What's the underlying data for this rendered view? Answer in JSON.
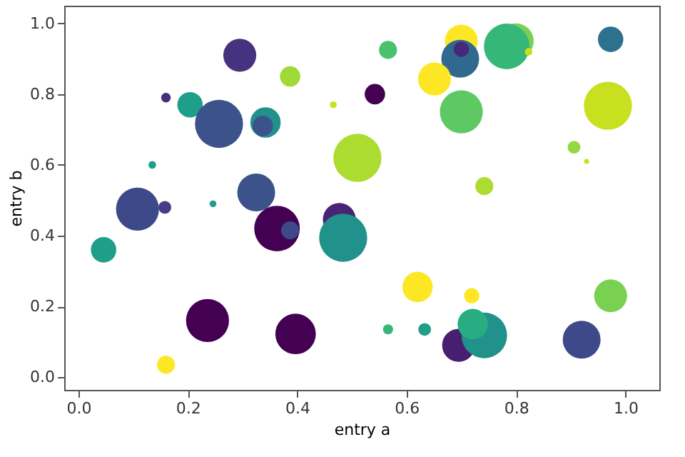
{
  "chart_data": {
    "type": "bubble",
    "xlabel": "entry a",
    "ylabel": "entry b",
    "x": [
      0.295,
      0.387,
      0.16,
      0.204,
      0.257,
      0.342,
      0.337,
      0.135,
      0.325,
      0.108,
      0.158,
      0.246,
      0.046,
      0.363,
      0.387,
      0.477,
      0.484,
      0.236,
      0.397,
      0.16,
      0.51,
      0.466,
      0.542,
      0.566,
      0.7,
      0.698,
      0.7,
      0.8,
      0.783,
      0.823,
      0.651,
      0.7,
      0.973,
      0.968,
      0.906,
      0.929,
      0.742,
      0.62,
      0.719,
      0.566,
      0.633,
      0.695,
      0.742,
      0.721,
      0.92,
      0.973
    ],
    "values": [
      0.91,
      0.85,
      0.79,
      0.77,
      0.716,
      0.72,
      0.71,
      0.6,
      0.522,
      0.475,
      0.48,
      0.49,
      0.36,
      0.42,
      0.415,
      0.446,
      0.394,
      0.16,
      0.122,
      0.035,
      0.62,
      0.77,
      0.8,
      0.925,
      0.95,
      0.9,
      0.927,
      0.95,
      0.935,
      0.92,
      0.843,
      0.75,
      0.955,
      0.767,
      0.65,
      0.61,
      0.54,
      0.255,
      0.23,
      0.135,
      0.135,
      0.09,
      0.118,
      0.15,
      0.106,
      0.23
    ],
    "sizes": [
      0.47,
      0.18,
      0.04,
      0.28,
      1,
      0.4,
      0.18,
      0.025,
      0.62,
      0.8,
      0.07,
      0.02,
      0.28,
      0.9,
      0.14,
      0.47,
      1,
      0.8,
      0.71,
      0.14,
      1,
      0.02,
      0.18,
      0.14,
      0.47,
      0.62,
      0.1,
      0.54,
      0.9,
      0.025,
      0.47,
      0.8,
      0.28,
      1,
      0.07,
      0.011,
      0.14,
      0.4,
      0.1,
      0.044,
      0.07,
      0.47,
      0.9,
      0.4,
      0.62,
      0.47
    ],
    "colors": [
      "#46327e",
      "#a0da39",
      "#472d7b",
      "#1f9e89",
      "#3b528b",
      "#21918c",
      "#3b528b",
      "#1f9e89",
      "#3b528b",
      "#3e4989",
      "#433e85",
      "#1f9e89",
      "#1f9e89",
      "#440154",
      "#3e4989",
      "#482475",
      "#21918c",
      "#440154",
      "#440154",
      "#fde725",
      "#addc30",
      "#c8e020",
      "#440154",
      "#4ac16d",
      "#fde725",
      "#31688e",
      "#482878",
      "#7ad151",
      "#35b779",
      "#c8e020",
      "#fde725",
      "#5ec962",
      "#2c728e",
      "#c8e020",
      "#95d840",
      "#c8e020",
      "#addc30",
      "#fde725",
      "#fde725",
      "#35b779",
      "#1f9e89",
      "#481f70",
      "#21918c",
      "#27ad81",
      "#3e4989",
      "#7ad151"
    ],
    "xlim": [
      -0.026,
      1.062
    ],
    "ylim": [
      -0.036,
      1.05
    ],
    "xticks": [
      {
        "value": 0,
        "label": "0.0"
      },
      {
        "value": 0.2,
        "label": "0.2"
      },
      {
        "value": 0.4,
        "label": "0.4"
      },
      {
        "value": 0.6,
        "label": "0.6"
      },
      {
        "value": 0.8,
        "label": "0.8"
      },
      {
        "value": 1,
        "label": "1.0"
      }
    ],
    "yticks": [
      {
        "value": 0,
        "label": "0.0"
      },
      {
        "value": 0.2,
        "label": "0.2"
      },
      {
        "value": 0.4,
        "label": "0.4"
      },
      {
        "value": 0.6,
        "label": "0.6"
      },
      {
        "value": 0.8,
        "label": "0.8"
      },
      {
        "value": 1,
        "label": "1.0"
      }
    ],
    "grid": false,
    "legend": false,
    "marker": "circle"
  }
}
